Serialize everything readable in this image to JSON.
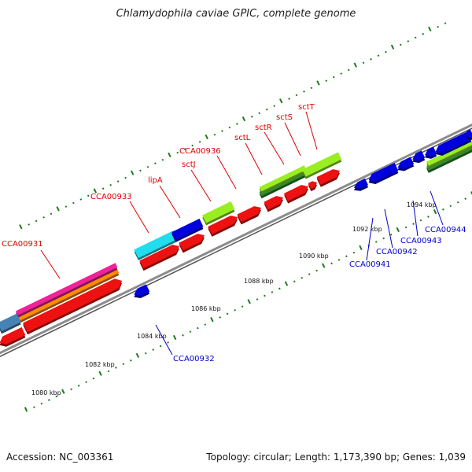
{
  "title": "Chlamydophila caviae GPIC, complete genome",
  "footer": {
    "accession": "Accession: NC_003361",
    "topology": "Topology: circular; Length: 1,173,390 bp; Genes: 1,039"
  },
  "colors": {
    "backbone": "#8c8c8c",
    "ticks": "#1e7a1e",
    "label_forward": "#dd0000",
    "label_reverse": "#0000cc",
    "gene_red": "#ee1111",
    "gene_blue": "#0000dd",
    "gene_cyan": "#22ddee",
    "gene_lime": "#99ee22",
    "gene_green": "#2e8b2e",
    "gene_magenta": "#ee2299",
    "gene_orange": "#ff8c00",
    "gene_steel": "#4682b4"
  },
  "scale_labels": [
    "1080 kbp",
    "1082 kbp",
    "1084 kbp",
    "1086 kbp",
    "1088 kbp",
    "1090 kbp",
    "1092 kbp",
    "1094 kbp"
  ],
  "gene_labels_forward": [
    "CCA00931",
    "CCA00933",
    "lipA",
    "sctJ",
    "CCA00936",
    "sctL",
    "sctR",
    "sctS",
    "sctT"
  ],
  "gene_labels_reverse": [
    "CCA00932",
    "CCA00941",
    "CCA00942",
    "CCA00943",
    "CCA00944"
  ]
}
